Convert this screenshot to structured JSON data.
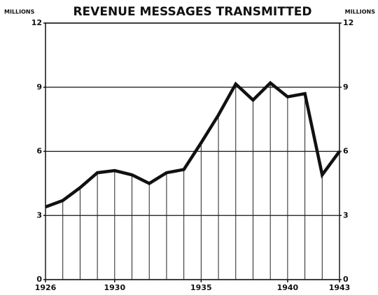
{
  "chart_data": {
    "type": "line",
    "title": "REVENUE MESSAGES TRANSMITTED",
    "ylabel": "MILLIONS",
    "y2label": "MILLIONS",
    "x": [
      1926,
      1927,
      1928,
      1929,
      1930,
      1931,
      1932,
      1933,
      1934,
      1935,
      1936,
      1937,
      1938,
      1939,
      1940,
      1941,
      1942,
      1943
    ],
    "series": [
      {
        "name": "Revenue messages",
        "color": "#111111",
        "values": [
          3.4,
          3.7,
          4.3,
          5.0,
          5.1,
          4.9,
          4.5,
          5.0,
          5.15,
          6.4,
          7.7,
          9.15,
          8.4,
          9.2,
          8.55,
          8.7,
          4.9,
          6.0
        ]
      }
    ],
    "xlim": [
      1926,
      1943
    ],
    "xticks": [
      1926,
      1930,
      1935,
      1940,
      1943
    ],
    "ylim": [
      0,
      12
    ],
    "yticks": [
      0,
      3,
      6,
      9,
      12
    ],
    "y2lim": [
      0,
      12
    ],
    "y2ticks": [
      0,
      3,
      6,
      9,
      12
    ],
    "grid": true
  }
}
